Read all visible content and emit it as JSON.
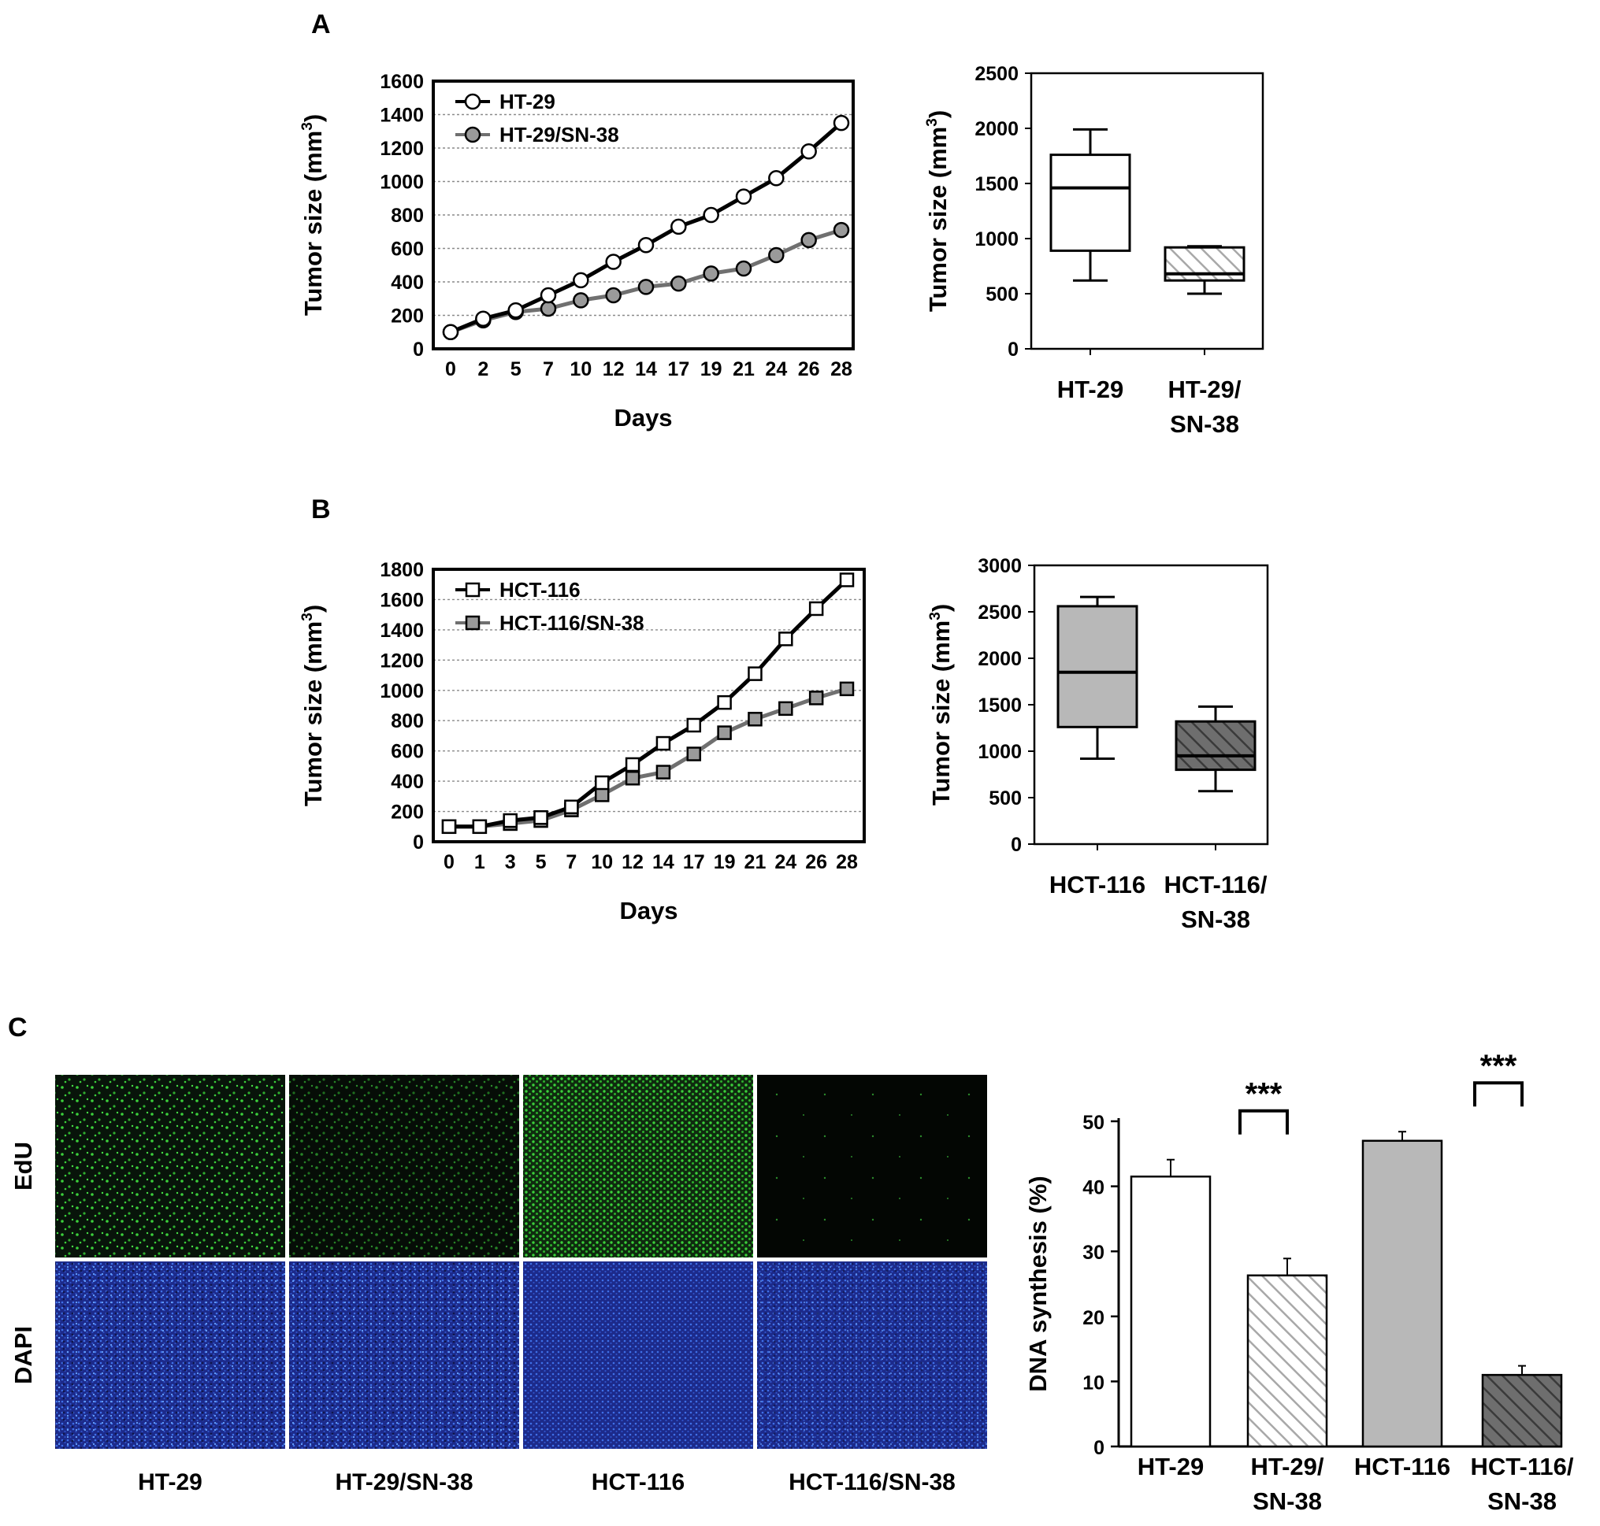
{
  "panels": {
    "A": {
      "letter": "A",
      "line": {
        "ylabel": "Tumor size (mm",
        "ylabel_sup": "3",
        "ylabel_tail": ")",
        "xlabel": "Days"
      },
      "box": {
        "ylabel": "Tumor size (mm",
        "ylabel_sup": "3",
        "ylabel_tail": ")",
        "categories": [
          {
            "lines": [
              "HT-29"
            ]
          },
          {
            "lines": [
              "HT-29/",
              "SN-38"
            ]
          }
        ]
      }
    },
    "B": {
      "letter": "B",
      "line": {
        "ylabel": "Tumor size (mm",
        "ylabel_sup": "3",
        "ylabel_tail": ")",
        "xlabel": "Days"
      },
      "box": {
        "ylabel": "Tumor size (mm",
        "ylabel_sup": "3",
        "ylabel_tail": ")",
        "categories": [
          {
            "lines": [
              "HCT-116"
            ]
          },
          {
            "lines": [
              "HCT-116/",
              "SN-38"
            ]
          }
        ]
      }
    },
    "C": {
      "letter": "C",
      "row_labels": [
        "EdU",
        "DAPI"
      ],
      "image_labels": [
        "HT-29",
        "HT-29/SN-38",
        "HCT-116",
        "HCT-116/SN-38"
      ],
      "bar": {
        "ylabel": "DNA synthesis (%)",
        "categories": [
          {
            "lines": [
              "HT-29"
            ]
          },
          {
            "lines": [
              "HT-29/",
              "SN-38"
            ]
          },
          {
            "lines": [
              "HCT-116"
            ]
          },
          {
            "lines": [
              "HCT-116/",
              "SN-38"
            ]
          }
        ],
        "significance": [
          "***",
          "***"
        ]
      }
    }
  },
  "colors": {
    "edu_background": "#0a0f0a",
    "edu_signal": "#3bd03b",
    "dapi_background": "#1c2a8a",
    "dapi_signal": "#4a86ff",
    "gray_fill": "#b8b8b8",
    "dark_gray_fill": "#8c8c8c"
  },
  "chart_data": [
    {
      "type": "line",
      "panel": "A",
      "x": [
        "0",
        "2",
        "5",
        "7",
        "10",
        "12",
        "14",
        "17",
        "19",
        "21",
        "24",
        "26",
        "28"
      ],
      "series": [
        {
          "name": "HT-29",
          "marker": "circle-open",
          "values": [
            100,
            180,
            230,
            320,
            410,
            520,
            620,
            730,
            800,
            910,
            1020,
            1180,
            1350
          ]
        },
        {
          "name": "HT-29/SN-38",
          "marker": "circle-filled",
          "values": [
            100,
            170,
            220,
            240,
            290,
            320,
            370,
            390,
            450,
            480,
            560,
            650,
            710
          ]
        }
      ],
      "xlabel": "Days",
      "ylabel": "Tumor size (mm3)",
      "ylim": [
        0,
        1600
      ],
      "yticks": [
        0,
        200,
        400,
        600,
        800,
        1000,
        1200,
        1400,
        1600
      ],
      "grid": "horizontal dotted",
      "legend": "top-left"
    },
    {
      "type": "box",
      "panel": "A",
      "categories": [
        "HT-29",
        "HT-29/SN-38"
      ],
      "boxes": [
        {
          "min": 620,
          "q1": 890,
          "median": 1460,
          "q3": 1760,
          "max": 1990,
          "fill": "white"
        },
        {
          "min": 500,
          "q1": 620,
          "median": 680,
          "q3": 920,
          "max": 930,
          "fill": "hatched light"
        }
      ],
      "ylabel": "Tumor size (mm3)",
      "ylim": [
        0,
        2500
      ],
      "yticks": [
        0,
        500,
        1000,
        1500,
        2000,
        2500
      ]
    },
    {
      "type": "line",
      "panel": "B",
      "x": [
        "0",
        "1",
        "3",
        "5",
        "7",
        "10",
        "12",
        "14",
        "17",
        "19",
        "21",
        "24",
        "26",
        "28"
      ],
      "series": [
        {
          "name": "HCT-116",
          "marker": "square-open",
          "values": [
            100,
            100,
            140,
            160,
            230,
            390,
            510,
            650,
            770,
            920,
            1110,
            1340,
            1540,
            1730
          ]
        },
        {
          "name": "HCT-116/SN-38",
          "marker": "square-filled",
          "values": [
            100,
            100,
            120,
            140,
            210,
            310,
            420,
            460,
            580,
            720,
            810,
            880,
            950,
            1010
          ]
        }
      ],
      "xlabel": "Days",
      "ylabel": "Tumor size (mm3)",
      "ylim": [
        0,
        1800
      ],
      "yticks": [
        0,
        200,
        400,
        600,
        800,
        1000,
        1200,
        1400,
        1600,
        1800
      ],
      "grid": "horizontal dotted",
      "legend": "top-left"
    },
    {
      "type": "box",
      "panel": "B",
      "categories": [
        "HCT-116",
        "HCT-116/SN-38"
      ],
      "boxes": [
        {
          "min": 920,
          "q1": 1260,
          "median": 1850,
          "q3": 2560,
          "max": 2660,
          "fill": "gray"
        },
        {
          "min": 570,
          "q1": 800,
          "median": 950,
          "q3": 1320,
          "max": 1480,
          "fill": "hatched dark"
        }
      ],
      "ylabel": "Tumor size (mm3)",
      "ylim": [
        0,
        3000
      ],
      "yticks": [
        0,
        500,
        1000,
        1500,
        2000,
        2500,
        3000
      ]
    },
    {
      "type": "bar",
      "panel": "C",
      "categories": [
        "HT-29",
        "HT-29/SN-38",
        "HCT-116",
        "HCT-116/SN-38"
      ],
      "values": [
        41.5,
        26.3,
        47.0,
        11.0
      ],
      "errors": [
        2.6,
        2.6,
        1.4,
        1.4
      ],
      "fills": [
        "white",
        "hatched light",
        "gray",
        "hatched dark"
      ],
      "ylabel": "DNA synthesis (%)",
      "ylim": [
        0,
        50
      ],
      "yticks": [
        0,
        10,
        20,
        30,
        40,
        50
      ],
      "significance": [
        {
          "between": [
            0,
            1
          ],
          "label": "***"
        },
        {
          "between": [
            2,
            3
          ],
          "label": "***"
        }
      ]
    }
  ]
}
